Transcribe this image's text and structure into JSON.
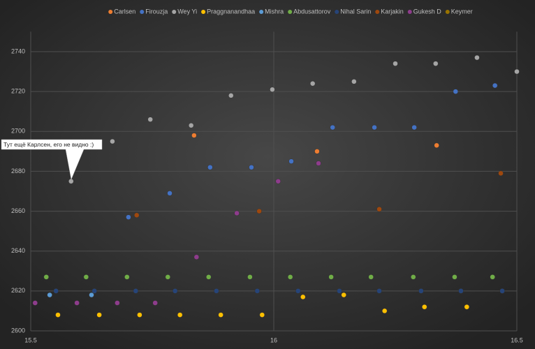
{
  "chart_data": {
    "type": "scatter",
    "annotation": "Тут ещё Карлсен, его не видно :)",
    "xlim": [
      15.5,
      16.5
    ],
    "xticks": [
      15.5,
      16,
      16.5
    ],
    "ylim": [
      2600,
      2750
    ],
    "yticks": [
      2600,
      2620,
      2640,
      2660,
      2680,
      2700,
      2720,
      2740
    ],
    "grid": true,
    "legend": "top",
    "series": [
      {
        "name": "Carlsen",
        "color": "#ed7d31",
        "x": [
          15.836,
          16.089,
          16.335
        ],
        "values": [
          2698,
          2690,
          2693
        ]
      },
      {
        "name": "Firouzja",
        "color": "#4472c4",
        "x": [
          15.701,
          15.786,
          15.869,
          15.954,
          16.036,
          16.121,
          16.207,
          16.289,
          16.374,
          16.455
        ],
        "values": [
          2657,
          2669,
          2682,
          2682,
          2685,
          2702,
          2702,
          2702,
          2720,
          2723
        ]
      },
      {
        "name": "Wey Yi",
        "color": "#a5a5a5",
        "x": [
          15.583,
          15.668,
          15.746,
          15.83,
          15.912,
          15.997,
          16.08,
          16.165,
          16.25,
          16.333,
          16.418,
          16.5
        ],
        "values": [
          2675,
          2695,
          2706,
          2703,
          2718,
          2721,
          2724,
          2725,
          2734,
          2734,
          2737,
          2730
        ]
      },
      {
        "name": "Praggnanandhaa",
        "color": "#ffc000",
        "x": [
          15.556,
          15.641,
          15.724,
          15.807,
          15.891,
          15.976,
          16.06,
          16.144,
          16.228,
          16.31,
          16.397
        ],
        "values": [
          2608,
          2608,
          2608,
          2608,
          2608,
          2608,
          2617,
          2618,
          2610,
          2612,
          2612
        ]
      },
      {
        "name": "Mishra",
        "color": "#5b9bd5",
        "x": [
          15.539,
          15.625
        ],
        "values": [
          2618,
          2618
        ]
      },
      {
        "name": "Abdusattorov",
        "color": "#70ad47",
        "x": [
          15.532,
          15.614,
          15.698,
          15.782,
          15.866,
          15.951,
          16.034,
          16.118,
          16.2,
          16.287,
          16.372,
          16.45
        ],
        "values": [
          2627,
          2627,
          2627,
          2627,
          2627,
          2627,
          2627,
          2627,
          2627,
          2627,
          2627,
          2627
        ]
      },
      {
        "name": "Nihal Sarin",
        "color": "#264478",
        "x": [
          15.552,
          15.631,
          15.716,
          15.797,
          15.882,
          15.966,
          16.05,
          16.135,
          16.217,
          16.303,
          16.385,
          16.47
        ],
        "values": [
          2620,
          2620,
          2620,
          2620,
          2620,
          2620,
          2620,
          2620,
          2620,
          2620,
          2620,
          2620
        ]
      },
      {
        "name": "Karjakin",
        "color": "#9e480e",
        "x": [
          15.718,
          15.97,
          16.217,
          16.467
        ],
        "values": [
          2658,
          2660,
          2661,
          2679
        ]
      },
      {
        "name": "Gukesh D",
        "color": "#8e3c8c",
        "x": [
          15.509,
          15.595,
          15.678,
          15.756,
          15.841,
          15.924,
          16.009,
          16.092
        ],
        "values": [
          2614,
          2614,
          2614,
          2614,
          2637,
          2659,
          2675,
          2684
        ]
      },
      {
        "name": "Keymer",
        "color": "#997300",
        "x": [],
        "values": []
      }
    ]
  }
}
